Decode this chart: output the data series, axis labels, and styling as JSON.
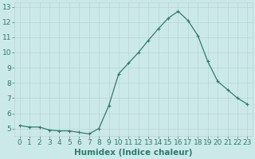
{
  "x": [
    0,
    1,
    2,
    3,
    4,
    5,
    6,
    7,
    8,
    9,
    10,
    11,
    12,
    13,
    14,
    15,
    16,
    17,
    18,
    19,
    20,
    21,
    22,
    23
  ],
  "y": [
    5.2,
    5.1,
    5.1,
    4.9,
    4.85,
    4.85,
    4.75,
    4.65,
    5.0,
    6.5,
    8.6,
    9.3,
    10.0,
    10.8,
    11.55,
    12.25,
    12.7,
    12.1,
    11.1,
    9.4,
    8.1,
    7.55,
    7.0,
    6.6
  ],
  "line_color": "#2e7b6e",
  "marker": "+",
  "marker_size": 3,
  "marker_lw": 0.8,
  "linewidth": 0.9,
  "xlabel": "Humidex (Indice chaleur)",
  "xlim": [
    -0.5,
    23.5
  ],
  "ylim": [
    4.5,
    13.3
  ],
  "yticks": [
    5,
    6,
    7,
    8,
    9,
    10,
    11,
    12,
    13
  ],
  "xticks": [
    0,
    1,
    2,
    3,
    4,
    5,
    6,
    7,
    8,
    9,
    10,
    11,
    12,
    13,
    14,
    15,
    16,
    17,
    18,
    19,
    20,
    21,
    22,
    23
  ],
  "bg_color": "#cce9e9",
  "grid_color": "#b8d4d4",
  "tick_color": "#2e7b6e",
  "label_color": "#2e7b6e",
  "xlabel_fontsize": 7.5,
  "tick_fontsize": 6.5
}
